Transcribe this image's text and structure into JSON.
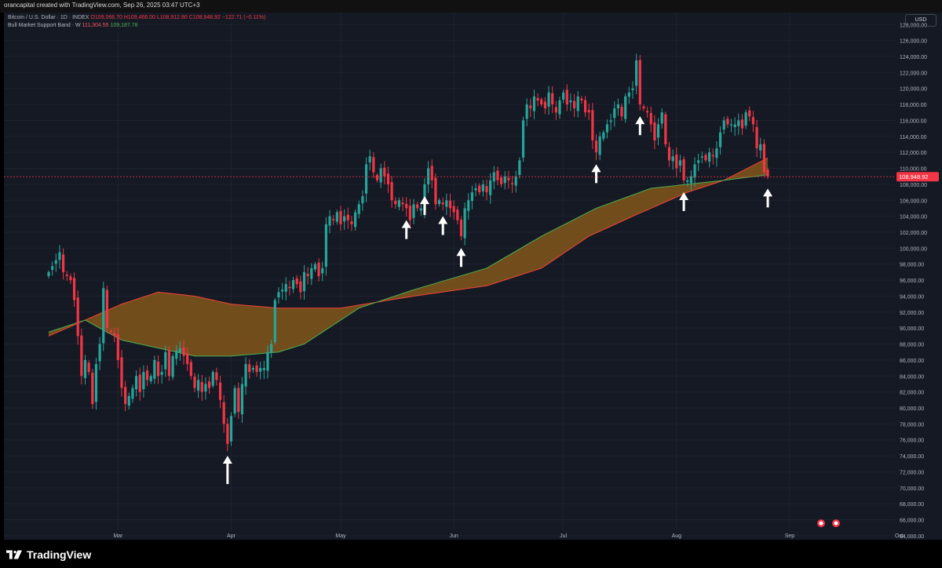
{
  "header": {
    "attribution": "orancapital created with TradingView.com, Sep 26, 2025 03:47 UTC+3"
  },
  "legend": {
    "symbol": "Bitcoin / U.S. Dollar · 1D · INDEX",
    "ohlc": "O109,066.70 H109,466.00 L108,912.80 C108,948.92 −122.71 (−0.11%)",
    "indicator_name": "Bull Market Support Band · W",
    "indicator_val1": "111,304.55",
    "indicator_val2": "109,187.78"
  },
  "currency_button": "USD",
  "last_price_label": "108,948.92",
  "footer": {
    "brand": "TradingView"
  },
  "colors": {
    "up": "#26a69a",
    "down": "#f23645",
    "band_fill": "#8a5a1a",
    "sma_line": "#f44336",
    "ema_line": "#4caf50",
    "arrow": "#ffffff"
  },
  "chart_data": {
    "type": "candlestick",
    "title": "Bitcoin / U.S. Dollar · 1D · INDEX",
    "x_ticks": [
      "Mar",
      "Apr",
      "May",
      "Jun",
      "Jul",
      "Aug",
      "Sep",
      "Oct"
    ],
    "y_ticks": [
      "128,000.00",
      "126,000.00",
      "124,000.00",
      "122,000.00",
      "120,000.00",
      "118,000.00",
      "116,000.00",
      "114,000.00",
      "112,000.00",
      "110,000.00",
      "108,000.00",
      "106,000.00",
      "104,000.00",
      "102,000.00",
      "100,000.00",
      "98,000.00",
      "96,000.00",
      "94,000.00",
      "92,000.00",
      "90,000.00",
      "88,000.00",
      "86,000.00",
      "84,000.00",
      "82,000.00",
      "80,000.00",
      "78,000.00",
      "76,000.00",
      "74,000.00",
      "72,000.00",
      "70,000.00",
      "68,000.00",
      "66,000.00",
      "64,000.00"
    ],
    "ylim": [
      63500,
      129500
    ],
    "x_start_date": "2025-02-10",
    "price_path": [
      [
        0,
        97000
      ],
      [
        2,
        98500
      ],
      [
        3,
        99500
      ],
      [
        4,
        97000
      ],
      [
        5,
        96500
      ],
      [
        6,
        96000
      ],
      [
        7,
        93500
      ],
      [
        8,
        89000
      ],
      [
        9,
        84000
      ],
      [
        10,
        86000
      ],
      [
        11,
        84500
      ],
      [
        12,
        80500
      ],
      [
        13,
        85500
      ],
      [
        14,
        88000
      ],
      [
        15,
        95000
      ],
      [
        16,
        90000
      ],
      [
        17,
        89500
      ],
      [
        18,
        89000
      ],
      [
        19,
        86000
      ],
      [
        20,
        82500
      ],
      [
        21,
        80500
      ],
      [
        22,
        81500
      ],
      [
        23,
        82500
      ],
      [
        24,
        84000
      ],
      [
        25,
        82000
      ],
      [
        26,
        84500
      ],
      [
        27,
        83500
      ],
      [
        28,
        84000
      ],
      [
        29,
        86000
      ],
      [
        30,
        84000
      ],
      [
        31,
        84500
      ],
      [
        32,
        87000
      ],
      [
        33,
        84000
      ],
      [
        34,
        86500
      ],
      [
        35,
        87200
      ],
      [
        36,
        87500
      ],
      [
        37,
        86500
      ],
      [
        38,
        85500
      ],
      [
        39,
        84000
      ],
      [
        40,
        82500
      ],
      [
        41,
        83500
      ],
      [
        42,
        82000
      ],
      [
        43,
        83000
      ],
      [
        44,
        82500
      ],
      [
        45,
        84500
      ],
      [
        46,
        83500
      ],
      [
        47,
        81000
      ],
      [
        48,
        78000
      ],
      [
        49,
        75500
      ],
      [
        50,
        79000
      ],
      [
        51,
        82500
      ],
      [
        52,
        79500
      ],
      [
        53,
        83000
      ],
      [
        54,
        85500
      ],
      [
        55,
        84500
      ],
      [
        56,
        85000
      ],
      [
        57,
        84500
      ],
      [
        58,
        85000
      ],
      [
        59,
        85000
      ],
      [
        60,
        87000
      ],
      [
        61,
        88000
      ],
      [
        62,
        93500
      ],
      [
        63,
        94500
      ],
      [
        64,
        94800
      ],
      [
        65,
        95500
      ],
      [
        66,
        95000
      ],
      [
        67,
        96000
      ],
      [
        68,
        95500
      ],
      [
        69,
        94500
      ],
      [
        70,
        97000
      ],
      [
        71,
        96500
      ],
      [
        72,
        97500
      ],
      [
        73,
        98000
      ],
      [
        74,
        96500
      ],
      [
        75,
        97500
      ],
      [
        76,
        103000
      ],
      [
        77,
        104000
      ],
      [
        78,
        103500
      ],
      [
        79,
        104500
      ],
      [
        80,
        103000
      ],
      [
        81,
        104000
      ],
      [
        82,
        103500
      ],
      [
        83,
        103000
      ],
      [
        84,
        104500
      ],
      [
        85,
        105500
      ],
      [
        86,
        106500
      ],
      [
        87,
        110500
      ],
      [
        88,
        111500
      ],
      [
        89,
        109500
      ],
      [
        90,
        108500
      ],
      [
        91,
        110000
      ],
      [
        92,
        109000
      ],
      [
        93,
        108000
      ],
      [
        94,
        106000
      ],
      [
        95,
        105500
      ],
      [
        96,
        106000
      ],
      [
        97,
        105500
      ],
      [
        98,
        105000
      ],
      [
        99,
        103500
      ],
      [
        100,
        105500
      ],
      [
        101,
        105000
      ],
      [
        102,
        105000
      ],
      [
        103,
        108000
      ],
      [
        104,
        110000
      ],
      [
        105,
        108500
      ],
      [
        106,
        105500
      ],
      [
        107,
        106000
      ],
      [
        108,
        105500
      ],
      [
        109,
        106000
      ],
      [
        110,
        105000
      ],
      [
        111,
        104500
      ],
      [
        112,
        103500
      ],
      [
        113,
        101500
      ],
      [
        114,
        105000
      ],
      [
        115,
        106000
      ],
      [
        116,
        107000
      ],
      [
        117,
        107500
      ],
      [
        118,
        107000
      ],
      [
        119,
        108000
      ],
      [
        120,
        107000
      ],
      [
        121,
        108500
      ],
      [
        122,
        109500
      ],
      [
        123,
        108500
      ],
      [
        124,
        108000
      ],
      [
        125,
        109000
      ],
      [
        126,
        108500
      ],
      [
        127,
        108000
      ],
      [
        128,
        109000
      ],
      [
        129,
        111000
      ],
      [
        130,
        116000
      ],
      [
        131,
        118000
      ],
      [
        132,
        117500
      ],
      [
        133,
        119000
      ],
      [
        134,
        118500
      ],
      [
        135,
        118000
      ],
      [
        136,
        117500
      ],
      [
        137,
        119500
      ],
      [
        138,
        118000
      ],
      [
        139,
        117000
      ],
      [
        140,
        118500
      ],
      [
        141,
        119500
      ],
      [
        142,
        118000
      ],
      [
        143,
        118500
      ],
      [
        144,
        117500
      ],
      [
        145,
        119000
      ],
      [
        146,
        118500
      ],
      [
        147,
        117000
      ],
      [
        148,
        117000
      ],
      [
        149,
        113500
      ],
      [
        150,
        112000
      ],
      [
        151,
        114000
      ],
      [
        152,
        114500
      ],
      [
        153,
        115500
      ],
      [
        154,
        116000
      ],
      [
        155,
        117500
      ],
      [
        156,
        118000
      ],
      [
        157,
        116500
      ],
      [
        158,
        119000
      ],
      [
        159,
        119500
      ],
      [
        160,
        120000
      ],
      [
        161,
        123500
      ],
      [
        162,
        118000
      ],
      [
        163,
        117500
      ],
      [
        164,
        117000
      ],
      [
        165,
        115500
      ],
      [
        166,
        113500
      ],
      [
        167,
        115500
      ],
      [
        168,
        117000
      ],
      [
        169,
        113000
      ],
      [
        170,
        111000
      ],
      [
        171,
        111500
      ],
      [
        172,
        110000
      ],
      [
        173,
        111000
      ],
      [
        174,
        108500
      ],
      [
        175,
        108500
      ],
      [
        176,
        109000
      ],
      [
        177,
        110500
      ],
      [
        178,
        111000
      ],
      [
        179,
        111500
      ],
      [
        180,
        111000
      ],
      [
        181,
        112000
      ],
      [
        182,
        111500
      ],
      [
        183,
        112500
      ],
      [
        184,
        114500
      ],
      [
        185,
        116000
      ],
      [
        186,
        115500
      ],
      [
        187,
        115500
      ],
      [
        188,
        115500
      ],
      [
        189,
        116000
      ],
      [
        190,
        115000
      ],
      [
        191,
        117000
      ],
      [
        192,
        116500
      ],
      [
        193,
        115500
      ],
      [
        194,
        112500
      ],
      [
        195,
        113000
      ],
      [
        196,
        109500
      ],
      [
        197,
        108950
      ]
    ],
    "bull_band_sma": [
      [
        0,
        89000
      ],
      [
        20,
        93000
      ],
      [
        30,
        94500
      ],
      [
        40,
        94000
      ],
      [
        50,
        93000
      ],
      [
        63,
        92500
      ],
      [
        80,
        92500
      ],
      [
        100,
        94000
      ],
      [
        120,
        95300
      ],
      [
        135,
        97500
      ],
      [
        148,
        101500
      ],
      [
        160,
        104000
      ],
      [
        175,
        107000
      ],
      [
        185,
        108500
      ],
      [
        197,
        111300
      ]
    ],
    "bull_band_ema": [
      [
        0,
        89500
      ],
      [
        10,
        91000
      ],
      [
        20,
        88500
      ],
      [
        30,
        87500
      ],
      [
        40,
        86500
      ],
      [
        50,
        86500
      ],
      [
        63,
        87000
      ],
      [
        70,
        88000
      ],
      [
        85,
        92500
      ],
      [
        100,
        94800
      ],
      [
        120,
        97500
      ],
      [
        135,
        101500
      ],
      [
        150,
        105000
      ],
      [
        165,
        107500
      ],
      [
        175,
        108000
      ],
      [
        185,
        108500
      ],
      [
        197,
        109200
      ]
    ],
    "annotation_arrows_at": [
      49,
      98,
      103,
      108,
      113,
      150,
      162,
      174,
      197
    ]
  }
}
